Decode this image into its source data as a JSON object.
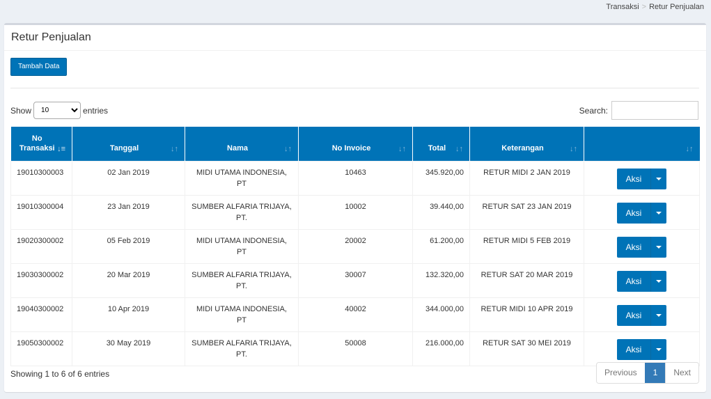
{
  "breadcrumb": {
    "parent": "Transaksi",
    "current": "Retur Penjualan"
  },
  "box": {
    "title": "Retur Penjualan",
    "add_button": "Tambah Data"
  },
  "length": {
    "show": "Show",
    "value": "10",
    "entries": "entries"
  },
  "search": {
    "label": "Search:",
    "value": ""
  },
  "table": {
    "headers": [
      "No Transaksi",
      "Tanggal",
      "Nama",
      "No Invoice",
      "Total",
      "Keterangan",
      ""
    ],
    "action_label": "Aksi",
    "rows": [
      {
        "no": "19010300003",
        "tanggal": "02 Jan 2019",
        "nama": "MIDI UTAMA INDONESIA, PT",
        "invoice": "10463",
        "total": "345.920,00",
        "ket": "RETUR MIDI 2 JAN 2019"
      },
      {
        "no": "19010300004",
        "tanggal": "23 Jan 2019",
        "nama": "SUMBER ALFARIA TRIJAYA, PT.",
        "invoice": "10002",
        "total": "39.440,00",
        "ket": "RETUR SAT 23 JAN 2019"
      },
      {
        "no": "19020300002",
        "tanggal": "05 Feb 2019",
        "nama": "MIDI UTAMA INDONESIA, PT",
        "invoice": "20002",
        "total": "61.200,00",
        "ket": "RETUR MIDI 5 FEB 2019"
      },
      {
        "no": "19030300002",
        "tanggal": "20 Mar 2019",
        "nama": "SUMBER ALFARIA TRIJAYA, PT.",
        "invoice": "30007",
        "total": "132.320,00",
        "ket": "RETUR SAT 20 MAR 2019"
      },
      {
        "no": "19040300002",
        "tanggal": "10 Apr 2019",
        "nama": "MIDI UTAMA INDONESIA, PT",
        "invoice": "40002",
        "total": "344.000,00",
        "ket": "RETUR MIDI 10 APR 2019"
      },
      {
        "no": "19050300002",
        "tanggal": "30 May 2019",
        "nama": "SUMBER ALFARIA TRIJAYA, PT.",
        "invoice": "50008",
        "total": "216.000,00",
        "ket": "RETUR SAT 30 MEI 2019"
      }
    ]
  },
  "footer": {
    "info": "Showing 1 to 6 of 6 entries",
    "previous": "Previous",
    "page": "1",
    "next": "Next"
  },
  "colors": {
    "primary": "#0073b7",
    "page_active": "#337ab7"
  }
}
